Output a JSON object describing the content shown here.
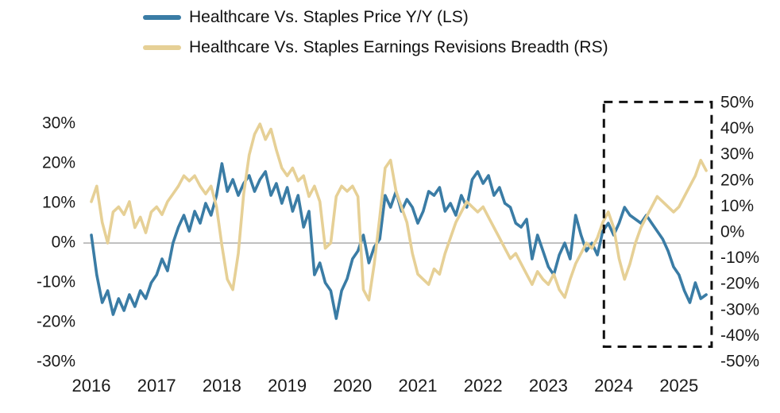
{
  "legend": {
    "items": [
      {
        "label": "Healthcare Vs. Staples Price Y/Y (LS)",
        "color": "#3a7ca5"
      },
      {
        "label": "Healthcare Vs. Staples Earnings Revisions Breadth (RS)",
        "color": "#e6d096"
      }
    ]
  },
  "colors": {
    "price_line": "#3a7ca5",
    "breadth_line": "#e6d096",
    "zero_line": "#9a9a9a",
    "highlight_box": "#111111",
    "axis_text": "#1a1a1a"
  },
  "chart_data": {
    "type": "line",
    "title": "",
    "x_unit": "decimal_year",
    "x_start": 2016.0,
    "x_step_months": 1,
    "x_ticks": [
      "2016",
      "2017",
      "2018",
      "2019",
      "2020",
      "2021",
      "2022",
      "2023",
      "2024",
      "2025"
    ],
    "left_axis": {
      "label": "Price Y/Y (LS)",
      "ticks": [
        "30%",
        "20%",
        "10%",
        "0%",
        "-10%",
        "-20%",
        "-30%"
      ],
      "min": -30,
      "max": 30
    },
    "right_axis": {
      "label": "Earnings Revisions Breadth (RS)",
      "ticks": [
        "50%",
        "40%",
        "30%",
        "20%",
        "10%",
        "0%",
        "-10%",
        "-20%",
        "-30%",
        "-40%",
        "-50%"
      ],
      "min": -50,
      "max": 50
    },
    "grid": false,
    "zero_line": true,
    "legend_position": "top-left",
    "highlight_box": {
      "x0": 2023.85,
      "x1": 2025.5,
      "y0_rs": -44,
      "y1_rs": 50.5
    },
    "series": [
      {
        "name": "Healthcare Vs. Staples Price Y/Y (LS)",
        "axis": "left",
        "color": "#3a7ca5",
        "values": [
          2,
          -8,
          -15,
          -12,
          -18,
          -14,
          -17,
          -13,
          -16,
          -12,
          -14,
          -10,
          -8,
          -4,
          -7,
          0,
          4,
          7,
          3,
          8,
          5,
          10,
          7,
          12,
          20,
          13,
          16,
          12,
          15,
          17,
          13,
          16,
          18,
          12,
          15,
          10,
          14,
          8,
          12,
          4,
          8,
          -8,
          -5,
          -10,
          -12,
          -19,
          -12,
          -9,
          -4,
          -2,
          2,
          -5,
          -1,
          1,
          12,
          9,
          13,
          8,
          11,
          9,
          5,
          8,
          13,
          12,
          14,
          8,
          10,
          7,
          12,
          9,
          16,
          18,
          15,
          17,
          12,
          14,
          10,
          9,
          5,
          4,
          6,
          -4,
          2,
          -2,
          -6,
          -8,
          -3,
          0,
          -4,
          7,
          2,
          -2,
          0,
          -3,
          3,
          5,
          2,
          5,
          9,
          7,
          6,
          5,
          7,
          5,
          3,
          1,
          -2,
          -6,
          -8,
          -12,
          -15,
          -10,
          -14,
          -13
        ]
      },
      {
        "name": "Healthcare Vs. Staples Earnings Revisions Breadth (RS)",
        "axis": "right",
        "color": "#e6d096",
        "values": [
          12,
          18,
          4,
          -4,
          8,
          10,
          7,
          12,
          2,
          6,
          0,
          8,
          10,
          7,
          12,
          15,
          18,
          22,
          20,
          22,
          18,
          15,
          18,
          10,
          -5,
          -18,
          -22,
          -8,
          15,
          30,
          38,
          42,
          36,
          40,
          32,
          25,
          22,
          25,
          20,
          22,
          14,
          18,
          12,
          -6,
          -4,
          14,
          18,
          16,
          18,
          14,
          -22,
          -26,
          -12,
          6,
          25,
          28,
          16,
          10,
          4,
          -8,
          -16,
          -18,
          -20,
          -14,
          -16,
          -8,
          -2,
          4,
          8,
          12,
          10,
          8,
          10,
          6,
          2,
          -2,
          -6,
          -10,
          -8,
          -12,
          -16,
          -20,
          -15,
          -18,
          -20,
          -16,
          -22,
          -25,
          -18,
          -12,
          -8,
          -4,
          -6,
          -2,
          4,
          8,
          2,
          -10,
          -18,
          -12,
          -4,
          2,
          6,
          10,
          14,
          12,
          10,
          8,
          10,
          14,
          18,
          22,
          28,
          24
        ]
      }
    ]
  }
}
